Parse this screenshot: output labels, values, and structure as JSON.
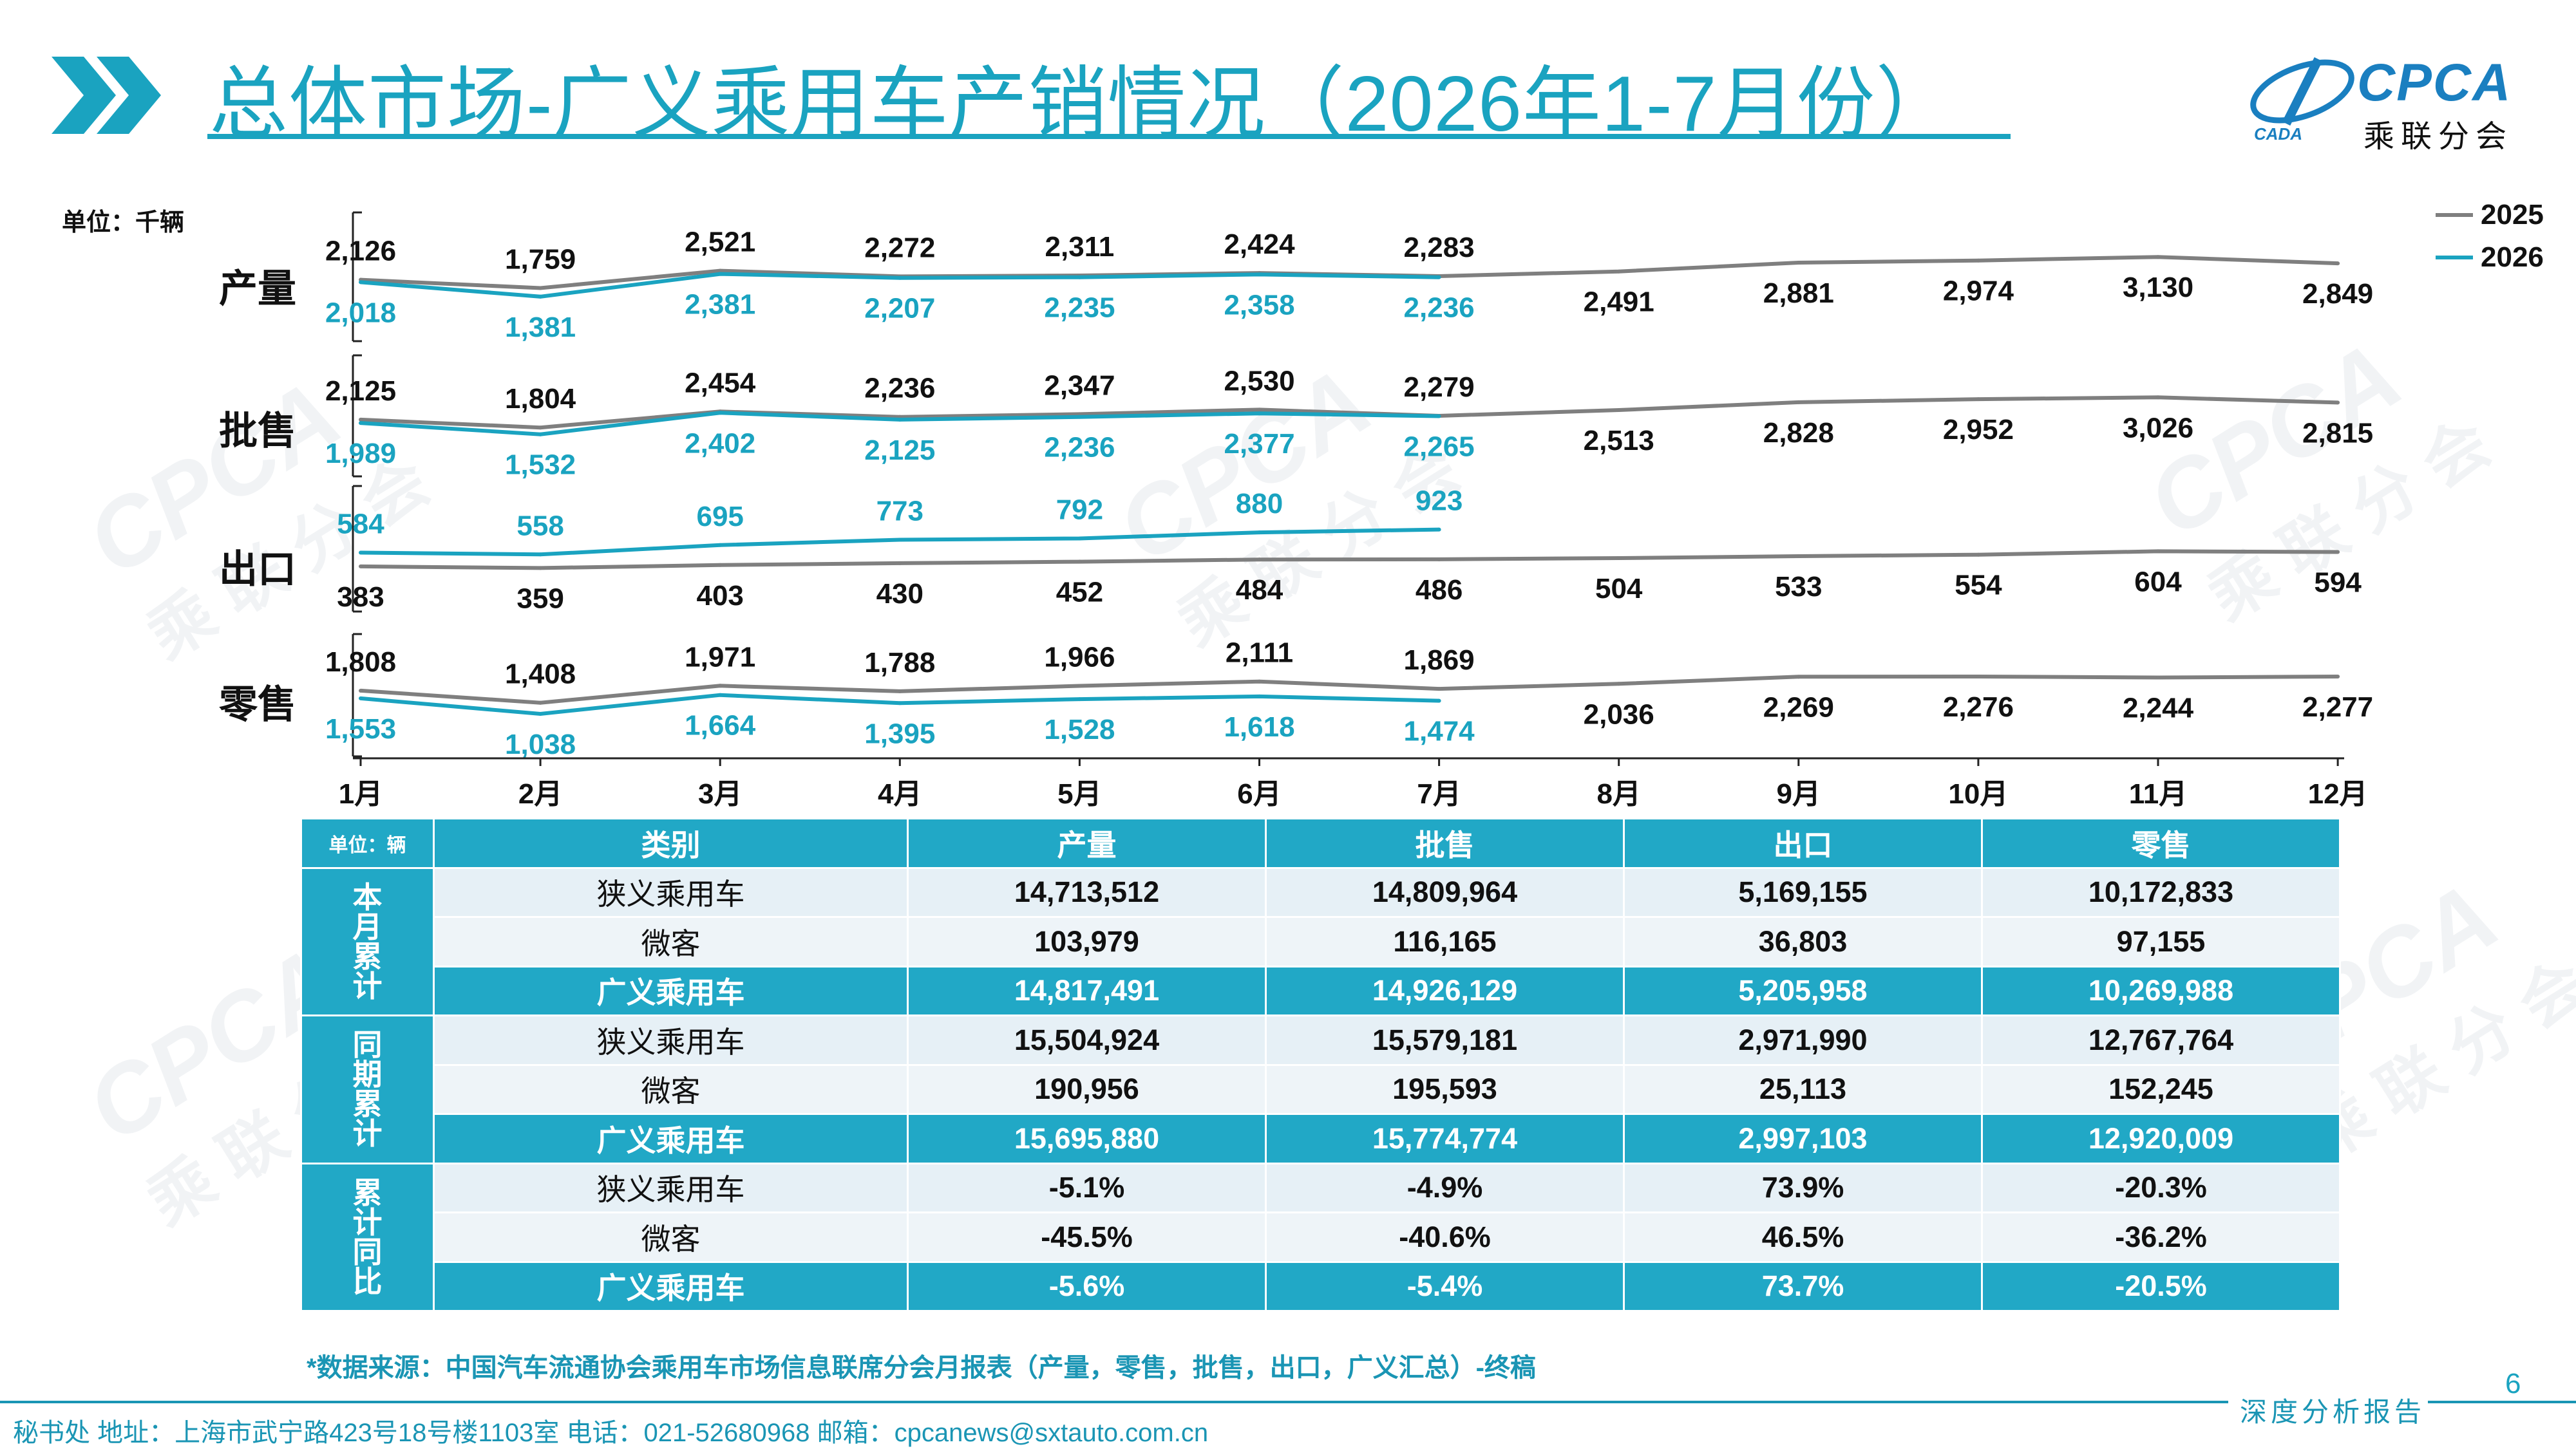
{
  "header": {
    "title": "总体市场-广义乘用车产销情况（2026年1-7月份）",
    "logo_text": "CPCA",
    "logo_sub": "乘联分会",
    "logo_mark_text": "CADA"
  },
  "watermark": {
    "text": "CPCA",
    "sub": "乘联分会"
  },
  "unit_label": "单位：千辆",
  "chart_data": {
    "type": "line",
    "categories": [
      "1月",
      "2月",
      "3月",
      "4月",
      "5月",
      "6月",
      "7月",
      "8月",
      "9月",
      "10月",
      "11月",
      "12月"
    ],
    "legend": [
      "2025",
      "2026"
    ],
    "legend_position": "top-right",
    "colors": {
      "2025": "#7f7f7f",
      "2026": "#1aa3c0"
    },
    "panels": [
      {
        "label": "产量",
        "series": [
          {
            "name": "2025",
            "values": [
              2126,
              1759,
              2521,
              2272,
              2311,
              2424,
              2283,
              2491,
              2881,
              2974,
              3130,
              2849
            ]
          },
          {
            "name": "2026",
            "values": [
              2018,
              1381,
              2381,
              2207,
              2235,
              2358,
              2236
            ]
          }
        ]
      },
      {
        "label": "批售",
        "series": [
          {
            "name": "2025",
            "values": [
              2125,
              1804,
              2454,
              2236,
              2347,
              2530,
              2279,
              2513,
              2828,
              2952,
              3026,
              2815
            ]
          },
          {
            "name": "2026",
            "values": [
              1989,
              1532,
              2402,
              2125,
              2236,
              2377,
              2265
            ]
          }
        ]
      },
      {
        "label": "出口",
        "series": [
          {
            "name": "2025",
            "values": [
              383,
              359,
              403,
              430,
              452,
              484,
              486,
              504,
              533,
              554,
              604,
              594
            ]
          },
          {
            "name": "2026",
            "values": [
              584,
              558,
              695,
              773,
              792,
              880,
              923
            ]
          }
        ]
      },
      {
        "label": "零售",
        "series": [
          {
            "name": "2025",
            "values": [
              1808,
              1408,
              1971,
              1788,
              1966,
              2111,
              1869,
              2036,
              2269,
              2276,
              2244,
              2277
            ]
          },
          {
            "name": "2026",
            "values": [
              1553,
              1038,
              1664,
              1395,
              1528,
              1618,
              1474
            ]
          }
        ]
      }
    ]
  },
  "table": {
    "unit": "单位：辆",
    "headers": [
      "类别",
      "产量",
      "批售",
      "出口",
      "零售"
    ],
    "groups": [
      {
        "label": "本月累计",
        "rows": [
          {
            "cat": "狭义乘用车",
            "values": [
              "14,713,512",
              "14,809,964",
              "5,169,155",
              "10,172,833"
            ]
          },
          {
            "cat": "微客",
            "values": [
              "103,979",
              "116,165",
              "36,803",
              "97,155"
            ]
          },
          {
            "cat": "广义乘用车",
            "values": [
              "14,817,491",
              "14,926,129",
              "5,205,958",
              "10,269,988"
            ]
          }
        ]
      },
      {
        "label": "同期累计",
        "rows": [
          {
            "cat": "狭义乘用车",
            "values": [
              "15,504,924",
              "15,579,181",
              "2,971,990",
              "12,767,764"
            ]
          },
          {
            "cat": "微客",
            "values": [
              "190,956",
              "195,593",
              "25,113",
              "152,245"
            ]
          },
          {
            "cat": "广义乘用车",
            "values": [
              "15,695,880",
              "15,774,774",
              "2,997,103",
              "12,920,009"
            ]
          }
        ]
      },
      {
        "label": "累计同比",
        "rows": [
          {
            "cat": "狭义乘用车",
            "values": [
              "-5.1%",
              "-4.9%",
              "73.9%",
              "-20.3%"
            ]
          },
          {
            "cat": "微客",
            "values": [
              "-45.5%",
              "-40.6%",
              "46.5%",
              "-36.2%"
            ]
          },
          {
            "cat": "广义乘用车",
            "values": [
              "-5.6%",
              "-5.4%",
              "73.7%",
              "-20.5%"
            ]
          }
        ]
      }
    ]
  },
  "footnote": "*数据来源：中国汽车流通协会乘用车市场信息联席分会月报表（产量，零售，批售，出口，广义汇总）-终稿",
  "page_number": "6",
  "footer_left": "秘书处   地址：上海市武宁路423号18号楼1103室  电话：021-52680968   邮箱：cpcanews@sxtauto.com.cn",
  "footer_right": "深度分析报告"
}
